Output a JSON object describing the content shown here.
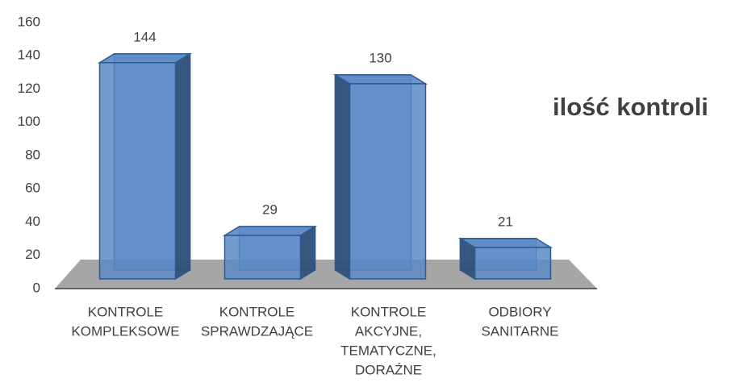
{
  "chart_data": {
    "type": "bar3d",
    "title": "ilość kontroli",
    "categories": [
      [
        "KONTROLE",
        "KOMPLEKSOWE"
      ],
      [
        "KONTROLE",
        "SPRAWDZAJĄCE"
      ],
      [
        "KONTROLE",
        "AKCYJNE,",
        "TEMATYCZNE,",
        "DORAŹNE"
      ],
      [
        "ODBIORY",
        "SANITARNE"
      ]
    ],
    "values": [
      144,
      29,
      130,
      21
    ],
    "color": "#5b8ac6",
    "ylim": [
      0,
      160
    ],
    "yticks": [
      0,
      20,
      40,
      60,
      80,
      100,
      120,
      140,
      160
    ]
  }
}
